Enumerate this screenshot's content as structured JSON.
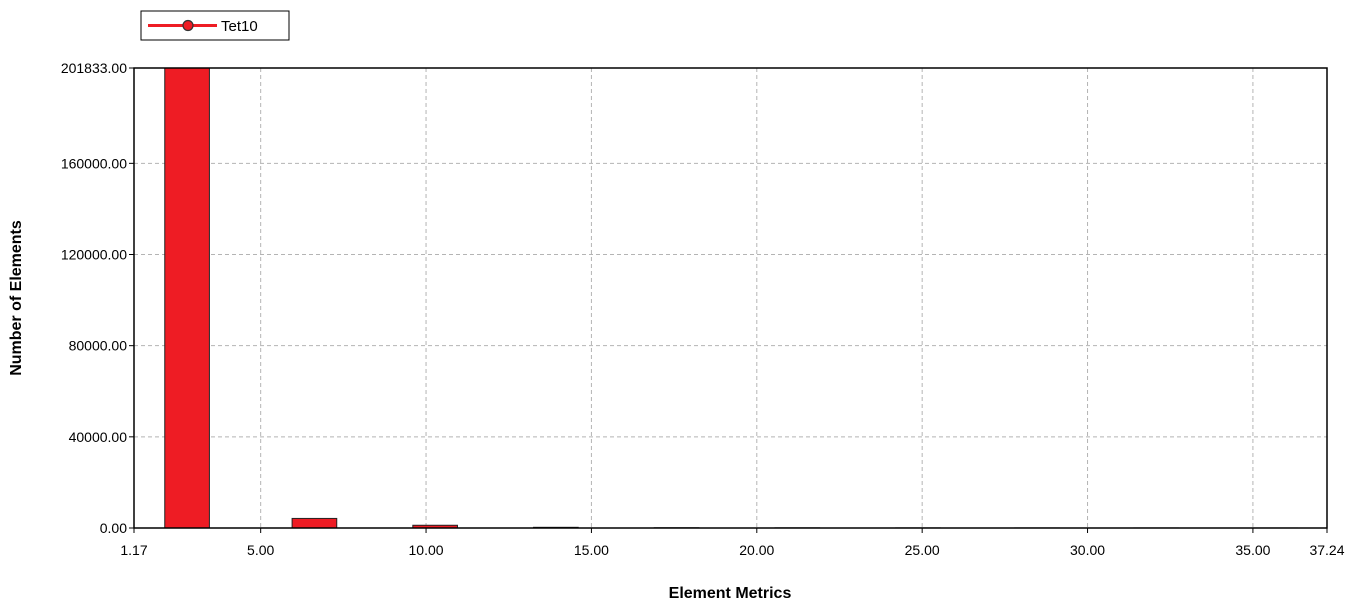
{
  "chart_data": {
    "type": "bar",
    "xlabel": "Element Metrics",
    "ylabel": "Number of Elements",
    "xlim": [
      1.17,
      37.24
    ],
    "ylim": [
      0,
      201833
    ],
    "xticks": [
      {
        "value": 1.17,
        "label": "1.17"
      },
      {
        "value": 5,
        "label": "5.00"
      },
      {
        "value": 10,
        "label": "10.00"
      },
      {
        "value": 15,
        "label": "15.00"
      },
      {
        "value": 20,
        "label": "20.00"
      },
      {
        "value": 25,
        "label": "25.00"
      },
      {
        "value": 30,
        "label": "30.00"
      },
      {
        "value": 35,
        "label": "35.00"
      },
      {
        "value": 37.24,
        "label": "37.24"
      }
    ],
    "yticks": [
      {
        "value": 0,
        "label": "0.00"
      },
      {
        "value": 40000,
        "label": "40000.00"
      },
      {
        "value": 80000,
        "label": "80000.00"
      },
      {
        "value": 120000,
        "label": "120000.00"
      },
      {
        "value": 160000,
        "label": "160000.00"
      },
      {
        "value": 201833,
        "label": "201833.00"
      }
    ],
    "grid": true,
    "legend_position": "top-left",
    "series": [
      {
        "name": "Tet10",
        "color": "#ee1c24",
        "bins": [
          {
            "x0": 2.1,
            "x1": 3.45,
            "value": 201833
          },
          {
            "x0": 5.95,
            "x1": 7.3,
            "value": 4200
          },
          {
            "x0": 9.6,
            "x1": 10.95,
            "value": 1200
          },
          {
            "x0": 13.25,
            "x1": 14.6,
            "value": 300
          },
          {
            "x0": 16.9,
            "x1": 18.25,
            "value": 100
          },
          {
            "x0": 20.55,
            "x1": 21.9,
            "value": 60
          },
          {
            "x0": 24.2,
            "x1": 25.55,
            "value": 40
          },
          {
            "x0": 27.8,
            "x1": 29.15,
            "value": 30
          },
          {
            "x0": 31.4,
            "x1": 32.75,
            "value": 20
          },
          {
            "x0": 35,
            "x1": 36.35,
            "value": 15
          }
        ]
      }
    ]
  }
}
